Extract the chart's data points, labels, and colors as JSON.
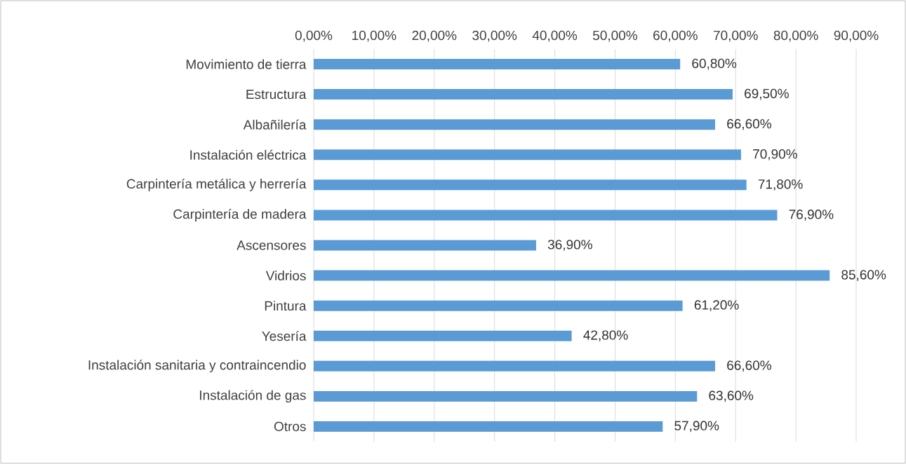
{
  "chart_data": {
    "type": "bar",
    "orientation": "horizontal",
    "color": "#5b9bd5",
    "grid": "x",
    "categories": [
      "Movimiento de tierra",
      "Estructura",
      "Albañilería",
      "Instalación eléctrica",
      "Carpintería metálica y herrería",
      "Carpintería de madera",
      "Ascensores",
      "Vidrios",
      "Pintura",
      "Yesería",
      "Instalación sanitaria y contraincendio",
      "Instalación de gas",
      "Otros"
    ],
    "values": [
      60.8,
      69.5,
      66.6,
      70.9,
      71.8,
      76.9,
      36.9,
      85.6,
      61.2,
      42.8,
      66.6,
      63.6,
      57.9
    ],
    "value_labels": [
      "60,80%",
      "69,50%",
      "66,60%",
      "70,90%",
      "71,80%",
      "76,90%",
      "36,90%",
      "85,60%",
      "61,20%",
      "42,80%",
      "66,60%",
      "63,60%",
      "57,90%"
    ],
    "xlim": [
      0,
      90
    ],
    "xticks": [
      {
        "value": 0,
        "label": "0,00%"
      },
      {
        "value": 10,
        "label": "10,00%"
      },
      {
        "value": 20,
        "label": "20,00%"
      },
      {
        "value": 30,
        "label": "30,00%"
      },
      {
        "value": 40,
        "label": "40,00%"
      },
      {
        "value": 50,
        "label": "50,00%"
      },
      {
        "value": 60,
        "label": "60,00%"
      },
      {
        "value": 70,
        "label": "70,00%"
      },
      {
        "value": 80,
        "label": "80,00%"
      },
      {
        "value": 90,
        "label": "90,00%"
      }
    ]
  }
}
